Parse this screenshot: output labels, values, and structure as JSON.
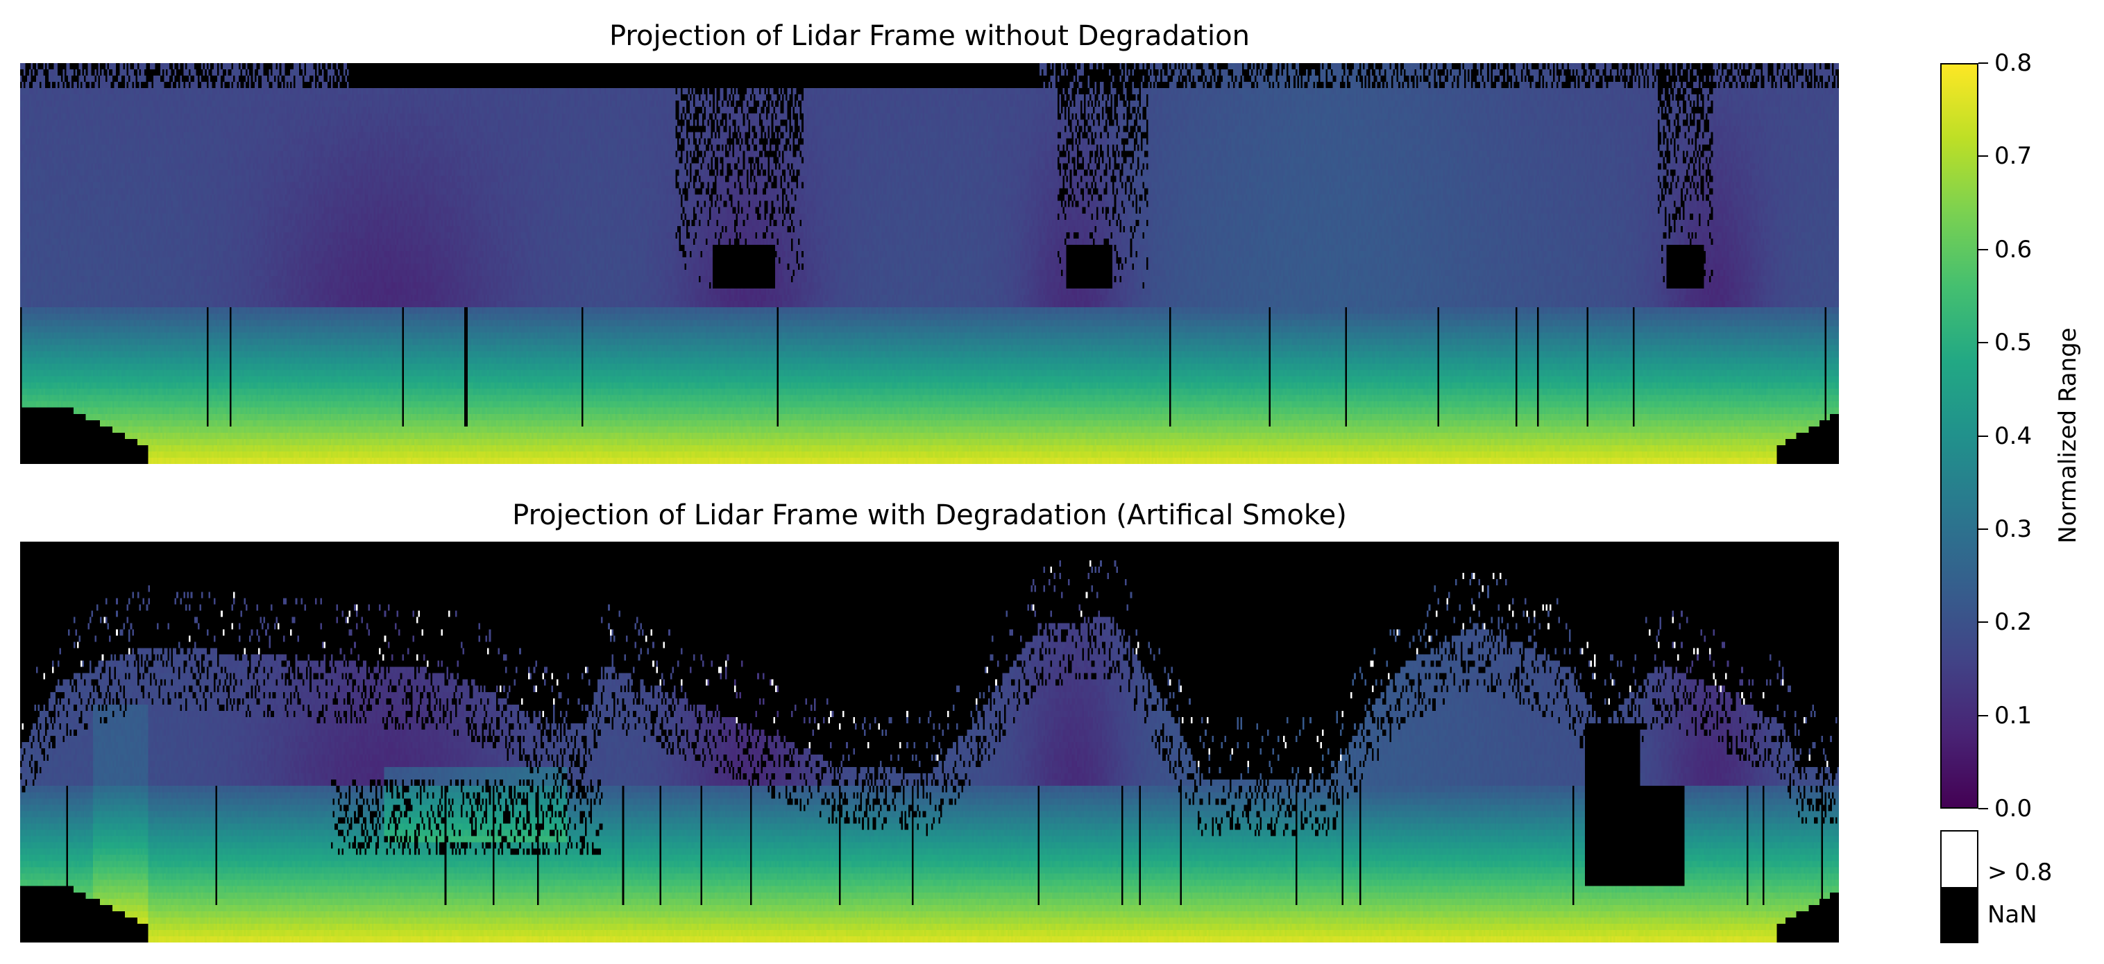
{
  "chart_data": [
    {
      "type": "heatmap",
      "title": "Projection of Lidar Frame without Degradation",
      "colormap": "viridis",
      "axes_visible": false,
      "nan_color": "#000000"
    },
    {
      "type": "heatmap",
      "title": "Projection of Lidar Frame with Degradation (Artifical Smoke)",
      "colormap": "viridis",
      "axes_visible": false,
      "nan_color": "#000000"
    }
  ],
  "colorbar": {
    "label": "Normalized Range",
    "vmin": 0.0,
    "vmax": 0.8,
    "ticks": [
      "0.0",
      "0.1",
      "0.2",
      "0.3",
      "0.4",
      "0.5",
      "0.6",
      "0.7",
      "0.8"
    ],
    "extend_labels": {
      "over": "> 0.8",
      "nan": "NaN"
    },
    "over_color": "#ffffff",
    "nan_color": "#000000"
  }
}
